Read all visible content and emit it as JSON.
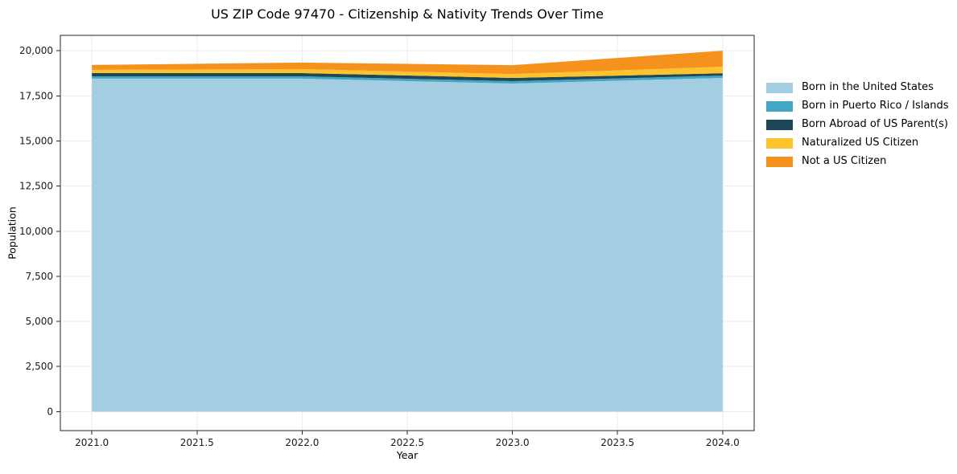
{
  "chart_data": {
    "type": "area",
    "stacked": true,
    "title": "US ZIP Code 97470 - Citizenship & Nativity Trends Over Time",
    "xlabel": "Year",
    "ylabel": "Population",
    "x": [
      2021,
      2022,
      2023,
      2024
    ],
    "series": [
      {
        "name": "Born in the United States",
        "color": "#a3cee2",
        "values": [
          18450,
          18450,
          18180,
          18490
        ]
      },
      {
        "name": "Born in Puerto Rico / Islands",
        "color": "#41a7c4",
        "values": [
          130,
          130,
          130,
          130
        ]
      },
      {
        "name": "Born Abroad of US Parent(s)",
        "color": "#1e4757",
        "values": [
          180,
          180,
          180,
          130
        ]
      },
      {
        "name": "Naturalized US Citizen",
        "color": "#fcc32d",
        "values": [
          180,
          220,
          220,
          360
        ]
      },
      {
        "name": "Not a US Citizen",
        "color": "#f5921e",
        "values": [
          270,
          360,
          490,
          890
        ]
      }
    ],
    "xticks": [
      2021.0,
      2021.5,
      2022.0,
      2022.5,
      2023.0,
      2023.5,
      2024.0
    ],
    "yticks": [
      0,
      2500,
      5000,
      7500,
      10000,
      12500,
      15000,
      17500,
      20000
    ],
    "xlim": [
      2020.85,
      2024.15
    ],
    "ylim": [
      -1050,
      20850
    ],
    "grid": true,
    "legend_position": "right",
    "colors": {
      "grid": "#ebebeb",
      "spine": "#262626",
      "tick_label": "#1a1a1a",
      "background": "#ffffff"
    }
  }
}
